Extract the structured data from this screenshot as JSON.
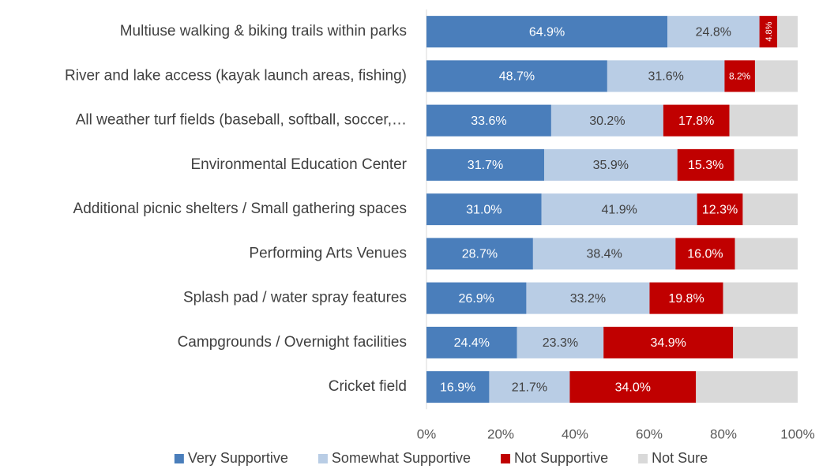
{
  "chart_data": {
    "type": "stacked_bar_horizontal",
    "categories": [
      "Multiuse walking & biking trails within parks",
      "River and lake access (kayak launch areas, fishing)",
      "All weather turf fields (baseball, softball, soccer,…",
      "Environmental Education Center",
      "Additional picnic shelters / Small gathering spaces",
      "Performing Arts Venues",
      "Splash pad / water spray features",
      "Campgrounds / Overnight facilities",
      "Cricket field"
    ],
    "series": [
      {
        "name": "Very Supportive",
        "color": "#4a7ebb",
        "values": [
          64.9,
          48.7,
          33.6,
          31.7,
          31,
          28.7,
          26.9,
          24.4,
          16.9
        ],
        "value_labels": [
          "64.9%",
          "48.7%",
          "33.6%",
          "31.7%",
          "31.0%",
          "28.7%",
          "26.9%",
          "24.4%",
          "16.9%"
        ]
      },
      {
        "name": "Somewhat Supportive",
        "color": "#b9cde5",
        "values": [
          24.8,
          31.6,
          30.2,
          35.9,
          41.9,
          38.4,
          33.2,
          23.3,
          21.7
        ],
        "value_labels": [
          "24.8%",
          "31.6%",
          "30.2%",
          "35.9%",
          "41.9%",
          "38.4%",
          "33.2%",
          "23.3%",
          "21.7%"
        ]
      },
      {
        "name": "Not Supportive",
        "color": "#c00000",
        "values": [
          4.8,
          8.2,
          17.8,
          15.3,
          12.3,
          16,
          19.8,
          34.9,
          34
        ],
        "value_labels": [
          "4.8%",
          "8.2%",
          "17.8%",
          "15.3%",
          "12.3%",
          "16.0%",
          "19.8%",
          "34.9%",
          "34.0%"
        ]
      },
      {
        "name": "Not Sure",
        "color": "#d9d9d9",
        "values": [
          5.5,
          11.5,
          18.4,
          17.1,
          14.8,
          16.9,
          20.1,
          17.4,
          27.4
        ]
      }
    ],
    "xlim": [
      0,
      100
    ],
    "xticks": [
      {
        "value": 0,
        "label": "0%"
      },
      {
        "value": 20,
        "label": "20%"
      },
      {
        "value": 40,
        "label": "40%"
      },
      {
        "value": 60,
        "label": "60%"
      },
      {
        "value": 80,
        "label": "80%"
      },
      {
        "value": 100,
        "label": "100%"
      }
    ],
    "legend": "bottom"
  }
}
